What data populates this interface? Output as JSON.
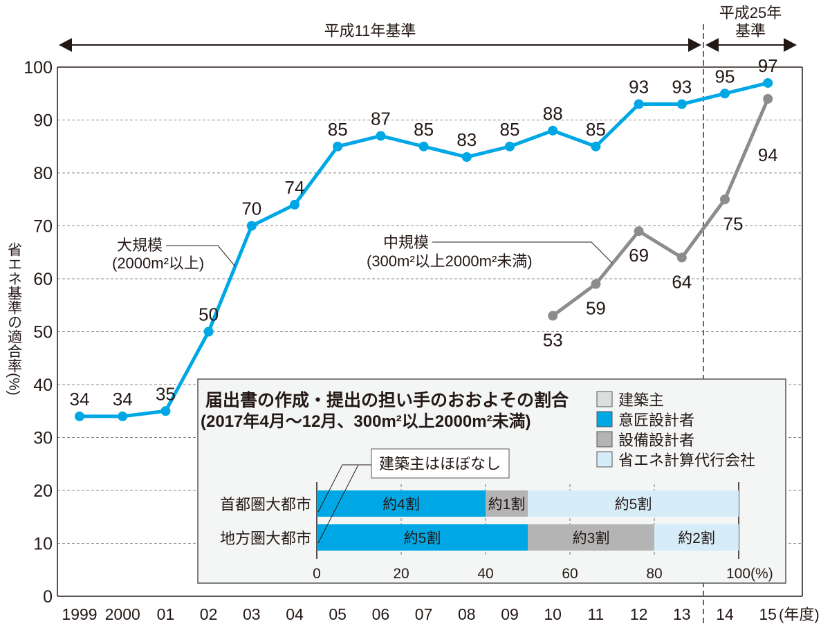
{
  "chart_data": {
    "type": "line",
    "x": [
      "1999",
      "2000",
      "01",
      "02",
      "03",
      "04",
      "05",
      "06",
      "07",
      "08",
      "09",
      "10",
      "11",
      "12",
      "13",
      "14",
      "15"
    ],
    "x_unit": "(年度)",
    "ylabel": "省エネ基準の適合率(%)",
    "ylim": [
      0,
      100
    ],
    "yticks": [
      0,
      10,
      20,
      30,
      40,
      50,
      60,
      70,
      80,
      90,
      100
    ],
    "grid": true,
    "series": [
      {
        "name": "大規模",
        "name_sub": "(2000m²以上)",
        "color": "#00a7e5",
        "values": [
          34,
          34,
          35,
          50,
          70,
          74,
          85,
          87,
          85,
          83,
          85,
          88,
          85,
          93,
          93,
          95,
          97
        ]
      },
      {
        "name": "中規模",
        "name_sub": "(300m²以上2000m²未満)",
        "color": "#8c8c8c",
        "values": [
          null,
          null,
          null,
          null,
          null,
          null,
          null,
          null,
          null,
          null,
          null,
          53,
          59,
          69,
          64,
          75,
          94
        ]
      }
    ],
    "periods": [
      {
        "label": "平成11年基準"
      },
      {
        "label": "平成25年",
        "label2": "基準"
      }
    ],
    "inset": {
      "type": "stacked-bar",
      "title": "届出書の作成・提出の担い手のおおよその割合",
      "subtitle": "(2017年4月〜12月、300m²以上2000m²未満)",
      "legend": [
        {
          "name": "建築主",
          "color": "#dcdddd"
        },
        {
          "name": "意匠設計者",
          "color": "#00a7e5"
        },
        {
          "name": "設備設計者",
          "color": "#b4b4b5"
        },
        {
          "name": "省エネ計算代行会社",
          "color": "#d6ecf8"
        }
      ],
      "callout": "建築主はほぼなし",
      "categories": [
        "首都圏大都市",
        "地方圏大都市"
      ],
      "rows": [
        {
          "segments": [
            {
              "series": "意匠設計者",
              "value": 40,
              "label": "約4割"
            },
            {
              "series": "設備設計者",
              "value": 10,
              "label": "約1割"
            },
            {
              "series": "省エネ計算代行会社",
              "value": 50,
              "label": "約5割"
            }
          ]
        },
        {
          "segments": [
            {
              "series": "意匠設計者",
              "value": 50,
              "label": "約5割"
            },
            {
              "series": "設備設計者",
              "value": 30,
              "label": "約3割"
            },
            {
              "series": "省エネ計算代行会社",
              "value": 20,
              "label": "約2割"
            }
          ]
        }
      ],
      "xticks": [
        "0",
        "20",
        "40",
        "60",
        "80",
        "100(%)"
      ],
      "xlim": [
        0,
        100
      ]
    }
  }
}
